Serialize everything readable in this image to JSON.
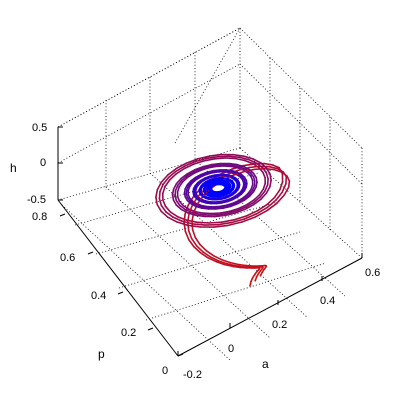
{
  "chart_data": {
    "type": "line",
    "projection": "3d",
    "title": "",
    "xlabel": "a",
    "ylabel": "p",
    "zlabel": "h",
    "x_ticks": [
      "-0.2",
      "0",
      "0.2",
      "0.4",
      "0.6"
    ],
    "y_ticks": [
      "0",
      "0.2",
      "0.4",
      "0.6",
      "0.8"
    ],
    "z_ticks": [
      "-0.5",
      "0",
      "0.5"
    ],
    "xlim": [
      -0.2,
      0.6
    ],
    "ylim": [
      0,
      0.8
    ],
    "zlim": [
      -0.5,
      0.5
    ],
    "grid": true,
    "colormap": {
      "start": "#d01010",
      "end": "#0000ff"
    },
    "series": [
      {
        "description": "trajectory spiralling inward toward a fixed point",
        "start": [
          0.42,
          0.36,
          0.0
        ],
        "center": [
          0.2,
          0.55,
          0.0
        ],
        "initial_radius": 0.3,
        "turns": 10,
        "branches": 3
      }
    ]
  }
}
